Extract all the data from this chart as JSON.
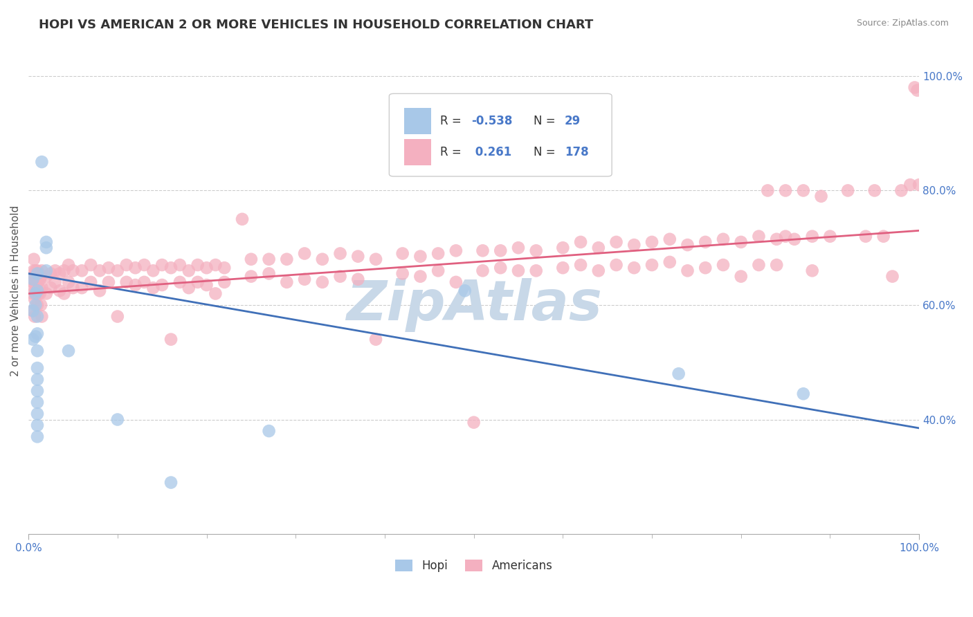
{
  "title": "HOPI VS AMERICAN 2 OR MORE VEHICLES IN HOUSEHOLD CORRELATION CHART",
  "source_text": "Source: ZipAtlas.com",
  "ylabel": "2 or more Vehicles in Household",
  "xlim": [
    0.0,
    1.0
  ],
  "ylim": [
    0.2,
    1.05
  ],
  "y_tick_positions": [
    0.4,
    0.6,
    0.8,
    1.0
  ],
  "y_tick_labels": [
    "40.0%",
    "60.0%",
    "80.0%",
    "100.0%"
  ],
  "x_tick_labels": [
    "0.0%",
    "100.0%"
  ],
  "hopi_color": "#a8c8e8",
  "americans_color": "#f4b0c0",
  "hopi_line_color": "#4070b8",
  "americans_line_color": "#e06080",
  "background_color": "#ffffff",
  "grid_color": "#cccccc",
  "watermark_text": "ZipAtlas",
  "watermark_color": "#c8d8e8",
  "title_fontsize": 13,
  "axis_label_fontsize": 11,
  "tick_fontsize": 11,
  "hopi_scatter": [
    [
      0.005,
      0.645
    ],
    [
      0.005,
      0.59
    ],
    [
      0.005,
      0.54
    ],
    [
      0.008,
      0.62
    ],
    [
      0.008,
      0.6
    ],
    [
      0.008,
      0.545
    ],
    [
      0.01,
      0.655
    ],
    [
      0.01,
      0.625
    ],
    [
      0.01,
      0.58
    ],
    [
      0.01,
      0.55
    ],
    [
      0.01,
      0.52
    ],
    [
      0.01,
      0.49
    ],
    [
      0.01,
      0.47
    ],
    [
      0.01,
      0.45
    ],
    [
      0.01,
      0.43
    ],
    [
      0.01,
      0.41
    ],
    [
      0.01,
      0.39
    ],
    [
      0.01,
      0.37
    ],
    [
      0.015,
      0.85
    ],
    [
      0.02,
      0.7
    ],
    [
      0.02,
      0.66
    ],
    [
      0.02,
      0.71
    ],
    [
      0.045,
      0.52
    ],
    [
      0.1,
      0.4
    ],
    [
      0.16,
      0.29
    ],
    [
      0.27,
      0.38
    ],
    [
      0.49,
      0.625
    ],
    [
      0.73,
      0.48
    ],
    [
      0.87,
      0.445
    ]
  ],
  "americans_scatter": [
    [
      0.005,
      0.64
    ],
    [
      0.005,
      0.62
    ],
    [
      0.005,
      0.59
    ],
    [
      0.006,
      0.68
    ],
    [
      0.006,
      0.66
    ],
    [
      0.006,
      0.63
    ],
    [
      0.007,
      0.65
    ],
    [
      0.007,
      0.61
    ],
    [
      0.007,
      0.58
    ],
    [
      0.008,
      0.64
    ],
    [
      0.008,
      0.66
    ],
    [
      0.008,
      0.62
    ],
    [
      0.009,
      0.65
    ],
    [
      0.009,
      0.63
    ],
    [
      0.01,
      0.66
    ],
    [
      0.01,
      0.64
    ],
    [
      0.01,
      0.6
    ],
    [
      0.011,
      0.65
    ],
    [
      0.011,
      0.62
    ],
    [
      0.012,
      0.655
    ],
    [
      0.012,
      0.63
    ],
    [
      0.013,
      0.645
    ],
    [
      0.013,
      0.62
    ],
    [
      0.014,
      0.65
    ],
    [
      0.014,
      0.6
    ],
    [
      0.015,
      0.66
    ],
    [
      0.015,
      0.63
    ],
    [
      0.015,
      0.58
    ],
    [
      0.02,
      0.65
    ],
    [
      0.02,
      0.62
    ],
    [
      0.025,
      0.655
    ],
    [
      0.025,
      0.63
    ],
    [
      0.03,
      0.66
    ],
    [
      0.03,
      0.64
    ],
    [
      0.035,
      0.655
    ],
    [
      0.035,
      0.625
    ],
    [
      0.04,
      0.66
    ],
    [
      0.04,
      0.62
    ],
    [
      0.045,
      0.67
    ],
    [
      0.045,
      0.64
    ],
    [
      0.05,
      0.66
    ],
    [
      0.05,
      0.63
    ],
    [
      0.06,
      0.66
    ],
    [
      0.06,
      0.63
    ],
    [
      0.07,
      0.67
    ],
    [
      0.07,
      0.64
    ],
    [
      0.08,
      0.66
    ],
    [
      0.08,
      0.625
    ],
    [
      0.09,
      0.665
    ],
    [
      0.09,
      0.64
    ],
    [
      0.1,
      0.66
    ],
    [
      0.1,
      0.58
    ],
    [
      0.11,
      0.67
    ],
    [
      0.11,
      0.64
    ],
    [
      0.12,
      0.665
    ],
    [
      0.12,
      0.635
    ],
    [
      0.13,
      0.67
    ],
    [
      0.13,
      0.64
    ],
    [
      0.14,
      0.66
    ],
    [
      0.14,
      0.63
    ],
    [
      0.15,
      0.67
    ],
    [
      0.15,
      0.635
    ],
    [
      0.16,
      0.665
    ],
    [
      0.16,
      0.54
    ],
    [
      0.17,
      0.67
    ],
    [
      0.17,
      0.64
    ],
    [
      0.18,
      0.66
    ],
    [
      0.18,
      0.63
    ],
    [
      0.19,
      0.67
    ],
    [
      0.19,
      0.64
    ],
    [
      0.2,
      0.665
    ],
    [
      0.2,
      0.635
    ],
    [
      0.21,
      0.67
    ],
    [
      0.21,
      0.62
    ],
    [
      0.22,
      0.665
    ],
    [
      0.22,
      0.64
    ],
    [
      0.24,
      0.75
    ],
    [
      0.25,
      0.68
    ],
    [
      0.25,
      0.65
    ],
    [
      0.27,
      0.68
    ],
    [
      0.27,
      0.655
    ],
    [
      0.29,
      0.68
    ],
    [
      0.29,
      0.64
    ],
    [
      0.31,
      0.69
    ],
    [
      0.31,
      0.645
    ],
    [
      0.33,
      0.68
    ],
    [
      0.33,
      0.64
    ],
    [
      0.35,
      0.69
    ],
    [
      0.35,
      0.65
    ],
    [
      0.37,
      0.685
    ],
    [
      0.37,
      0.645
    ],
    [
      0.39,
      0.68
    ],
    [
      0.39,
      0.54
    ],
    [
      0.42,
      0.69
    ],
    [
      0.42,
      0.655
    ],
    [
      0.44,
      0.685
    ],
    [
      0.44,
      0.65
    ],
    [
      0.46,
      0.69
    ],
    [
      0.46,
      0.66
    ],
    [
      0.48,
      0.695
    ],
    [
      0.48,
      0.64
    ],
    [
      0.5,
      0.395
    ],
    [
      0.51,
      0.695
    ],
    [
      0.51,
      0.66
    ],
    [
      0.53,
      0.695
    ],
    [
      0.53,
      0.665
    ],
    [
      0.55,
      0.7
    ],
    [
      0.55,
      0.66
    ],
    [
      0.57,
      0.695
    ],
    [
      0.57,
      0.66
    ],
    [
      0.6,
      0.7
    ],
    [
      0.6,
      0.665
    ],
    [
      0.62,
      0.71
    ],
    [
      0.62,
      0.67
    ],
    [
      0.64,
      0.7
    ],
    [
      0.64,
      0.66
    ],
    [
      0.66,
      0.71
    ],
    [
      0.66,
      0.67
    ],
    [
      0.68,
      0.705
    ],
    [
      0.68,
      0.665
    ],
    [
      0.7,
      0.71
    ],
    [
      0.7,
      0.67
    ],
    [
      0.72,
      0.715
    ],
    [
      0.72,
      0.675
    ],
    [
      0.74,
      0.705
    ],
    [
      0.74,
      0.66
    ],
    [
      0.76,
      0.71
    ],
    [
      0.76,
      0.665
    ],
    [
      0.78,
      0.715
    ],
    [
      0.78,
      0.67
    ],
    [
      0.8,
      0.71
    ],
    [
      0.8,
      0.65
    ],
    [
      0.82,
      0.72
    ],
    [
      0.82,
      0.67
    ],
    [
      0.83,
      0.8
    ],
    [
      0.84,
      0.715
    ],
    [
      0.84,
      0.67
    ],
    [
      0.85,
      0.72
    ],
    [
      0.85,
      0.8
    ],
    [
      0.86,
      0.715
    ],
    [
      0.87,
      0.8
    ],
    [
      0.88,
      0.72
    ],
    [
      0.88,
      0.66
    ],
    [
      0.89,
      0.79
    ],
    [
      0.9,
      0.72
    ],
    [
      0.92,
      0.8
    ],
    [
      0.94,
      0.72
    ],
    [
      0.95,
      0.8
    ],
    [
      0.96,
      0.72
    ],
    [
      0.97,
      0.65
    ],
    [
      0.98,
      0.8
    ],
    [
      0.99,
      0.81
    ],
    [
      0.995,
      0.98
    ],
    [
      0.998,
      0.975
    ],
    [
      1.0,
      0.81
    ]
  ],
  "hopi_line": [
    0.0,
    0.655,
    1.0,
    0.385
  ],
  "americans_line": [
    0.0,
    0.62,
    1.0,
    0.73
  ]
}
